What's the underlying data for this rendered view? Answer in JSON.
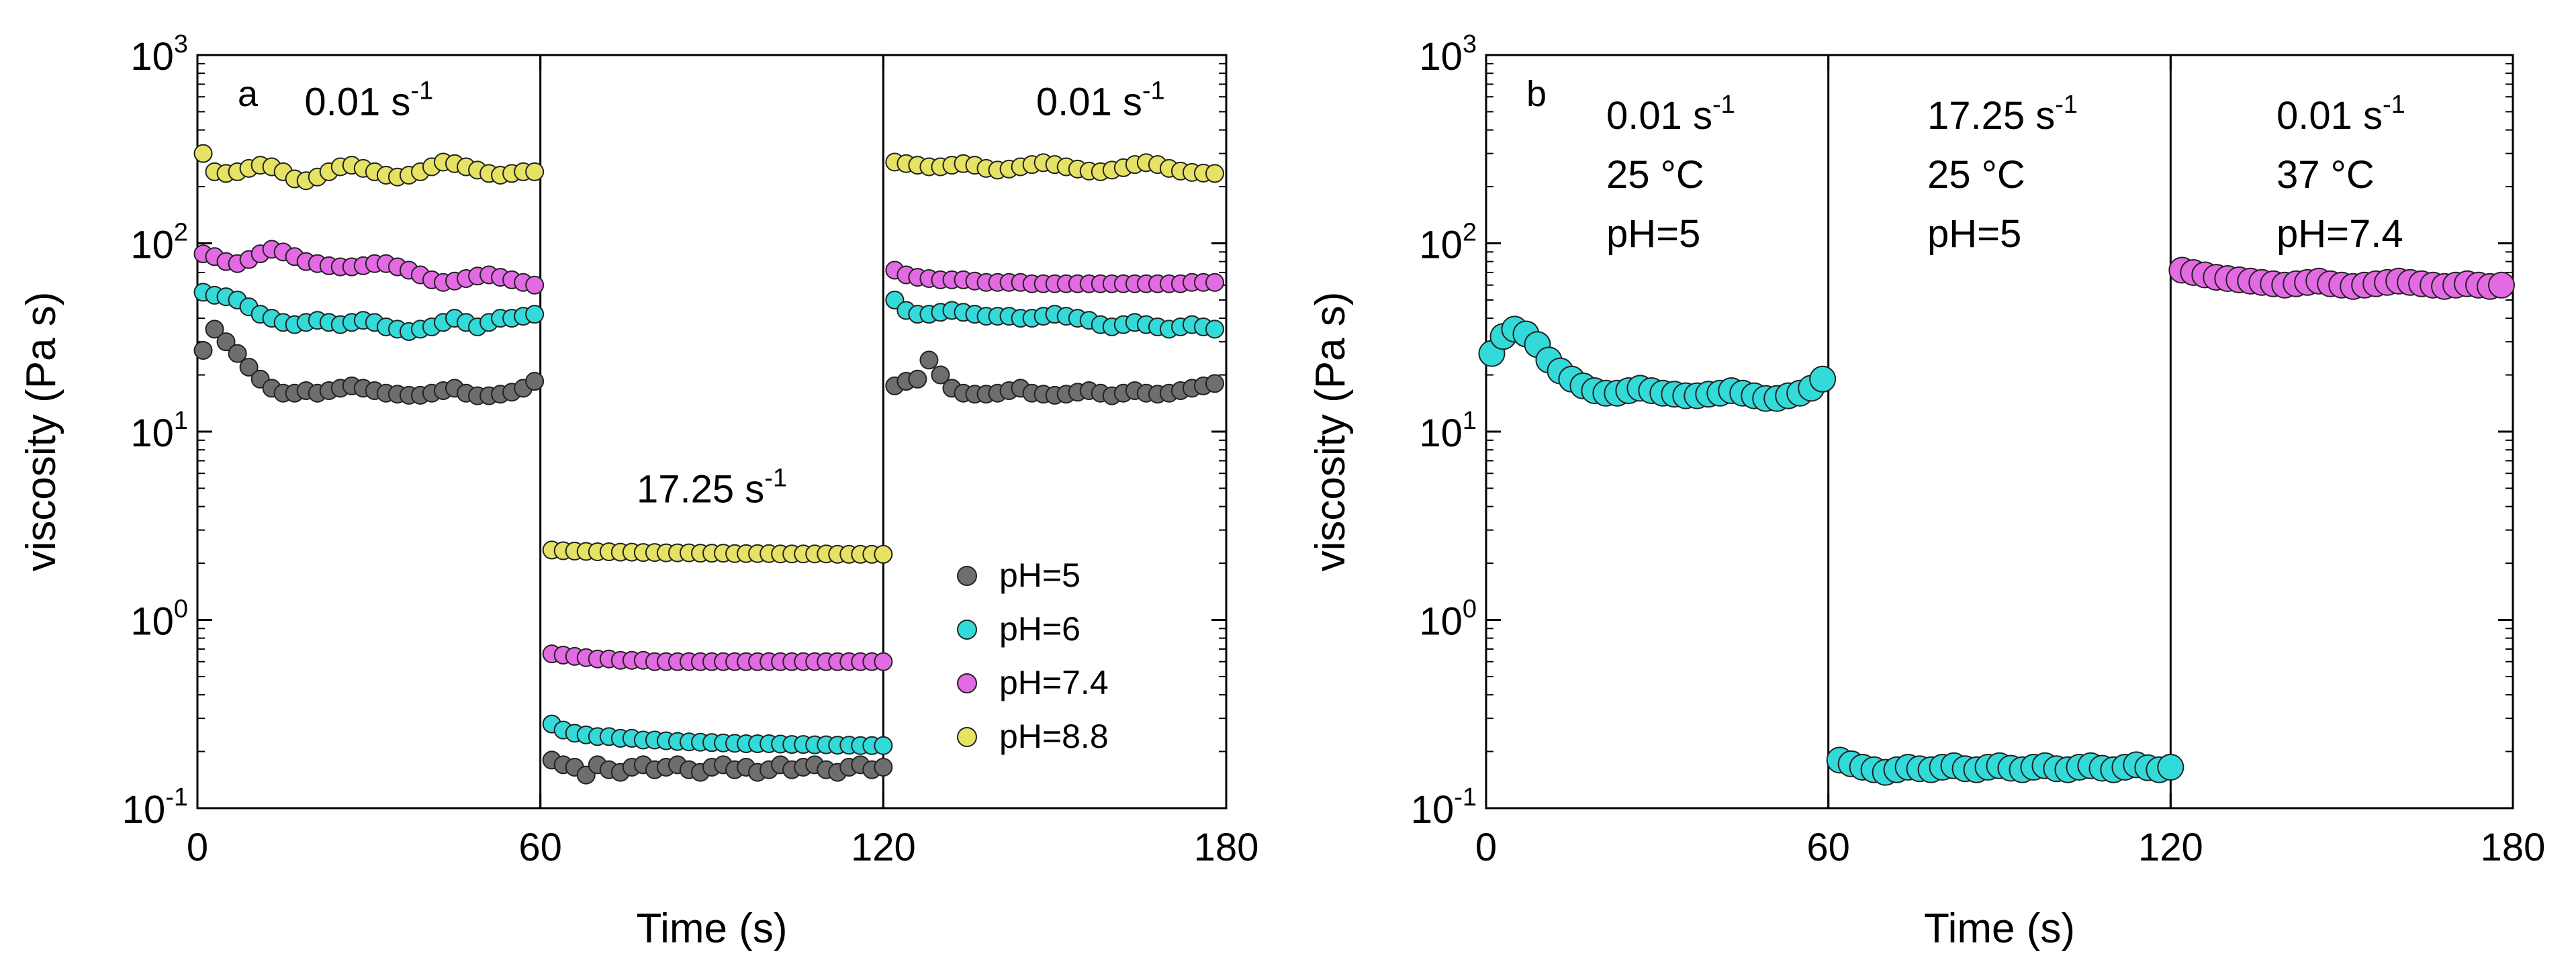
{
  "chart_data": [
    {
      "type": "scatter",
      "panel_label": "a",
      "xlabel": "Time (s)",
      "ylabel": "viscosity (Pa s)",
      "yscale": "log",
      "xlim": [
        0,
        180
      ],
      "ylim": [
        0.1,
        1000
      ],
      "x_ticks": [
        "0",
        "60",
        "120",
        "180"
      ],
      "y_ticks": [
        {
          "base": "10",
          "exp": "-1"
        },
        {
          "base": "10",
          "exp": "0"
        },
        {
          "base": "10",
          "exp": "1"
        },
        {
          "base": "10",
          "exp": "2"
        },
        {
          "base": "10",
          "exp": "3"
        }
      ],
      "vlines": [
        60,
        120
      ],
      "annotations": [
        {
          "text": "0.01 s",
          "sup": "-1",
          "x": 30,
          "y": 480
        },
        {
          "text": "17.25 s",
          "sup": "-1",
          "x": 90,
          "y": 4.2
        },
        {
          "text": "0.01 s",
          "sup": "-1",
          "x": 158,
          "y": 480
        }
      ],
      "legend": {
        "placement": "right-middle"
      },
      "series": [
        {
          "name": "pH=5",
          "color": "#6e6e6e",
          "x": [
            1,
            3,
            5,
            7,
            9,
            11,
            13,
            15,
            17,
            19,
            21,
            23,
            25,
            27,
            29,
            31,
            33,
            35,
            37,
            39,
            41,
            43,
            45,
            47,
            49,
            51,
            53,
            55,
            57,
            59,
            62,
            64,
            66,
            68,
            70,
            72,
            74,
            76,
            78,
            80,
            82,
            84,
            86,
            88,
            90,
            92,
            94,
            96,
            98,
            100,
            102,
            104,
            106,
            108,
            110,
            112,
            114,
            116,
            118,
            120,
            122,
            124,
            126,
            128,
            130,
            132,
            134,
            136,
            138,
            140,
            142,
            144,
            146,
            148,
            150,
            152,
            154,
            156,
            158,
            160,
            162,
            164,
            166,
            168,
            170,
            172,
            174,
            176,
            178
          ],
          "y": [
            27,
            35,
            30,
            26,
            22,
            19,
            17,
            16,
            16,
            16.5,
            16,
            16.5,
            17,
            17.5,
            17,
            16.5,
            16,
            15.8,
            15.6,
            15.6,
            16,
            16.5,
            17,
            16,
            15.5,
            15.5,
            15.8,
            16.2,
            17,
            18.5,
            0.18,
            0.17,
            0.165,
            0.15,
            0.17,
            0.16,
            0.155,
            0.165,
            0.17,
            0.16,
            0.165,
            0.17,
            0.16,
            0.155,
            0.165,
            0.17,
            0.16,
            0.165,
            0.155,
            0.16,
            0.17,
            0.16,
            0.165,
            0.17,
            0.16,
            0.155,
            0.165,
            0.17,
            0.16,
            0.165,
            17.5,
            18.5,
            19,
            24,
            20,
            17,
            16,
            15.8,
            15.8,
            16,
            16.5,
            17,
            16,
            15.8,
            15.6,
            15.8,
            16.2,
            16.5,
            16,
            15.5,
            16,
            16.5,
            16,
            15.8,
            16,
            16.5,
            17,
            17.5,
            18
          ]
        },
        {
          "name": "pH=6",
          "color": "#33dada",
          "x": [
            1,
            3,
            5,
            7,
            9,
            11,
            13,
            15,
            17,
            19,
            21,
            23,
            25,
            27,
            29,
            31,
            33,
            35,
            37,
            39,
            41,
            43,
            45,
            47,
            49,
            51,
            53,
            55,
            57,
            59,
            62,
            64,
            66,
            68,
            70,
            72,
            74,
            76,
            78,
            80,
            82,
            84,
            86,
            88,
            90,
            92,
            94,
            96,
            98,
            100,
            102,
            104,
            106,
            108,
            110,
            112,
            114,
            116,
            118,
            120,
            122,
            124,
            126,
            128,
            130,
            132,
            134,
            136,
            138,
            140,
            142,
            144,
            146,
            148,
            150,
            152,
            154,
            156,
            158,
            160,
            162,
            164,
            166,
            168,
            170,
            172,
            174,
            176,
            178
          ],
          "y": [
            55,
            53,
            52,
            50,
            46,
            42,
            40,
            38,
            37,
            38,
            39,
            38,
            37,
            38,
            39,
            38,
            36,
            35,
            34,
            35,
            36,
            38,
            40,
            38,
            36,
            38,
            40,
            40,
            41,
            42,
            0.28,
            0.26,
            0.25,
            0.245,
            0.24,
            0.24,
            0.235,
            0.235,
            0.23,
            0.23,
            0.228,
            0.226,
            0.225,
            0.224,
            0.223,
            0.222,
            0.221,
            0.22,
            0.22,
            0.22,
            0.219,
            0.218,
            0.218,
            0.217,
            0.217,
            0.216,
            0.216,
            0.215,
            0.215,
            0.215,
            50,
            44,
            42,
            42,
            43,
            44,
            43,
            42,
            41,
            41,
            41,
            40,
            40,
            41,
            42,
            41,
            40,
            39,
            37,
            36,
            37,
            38,
            37,
            36,
            35,
            36,
            37,
            36,
            35
          ]
        },
        {
          "name": "pH=7.4",
          "color": "#e46ae4",
          "x": [
            1,
            3,
            5,
            7,
            9,
            11,
            13,
            15,
            17,
            19,
            21,
            23,
            25,
            27,
            29,
            31,
            33,
            35,
            37,
            39,
            41,
            43,
            45,
            47,
            49,
            51,
            53,
            55,
            57,
            59,
            62,
            64,
            66,
            68,
            70,
            72,
            74,
            76,
            78,
            80,
            82,
            84,
            86,
            88,
            90,
            92,
            94,
            96,
            98,
            100,
            102,
            104,
            106,
            108,
            110,
            112,
            114,
            116,
            118,
            120,
            122,
            124,
            126,
            128,
            130,
            132,
            134,
            136,
            138,
            140,
            142,
            144,
            146,
            148,
            150,
            152,
            154,
            156,
            158,
            160,
            162,
            164,
            166,
            168,
            170,
            172,
            174,
            176,
            178
          ],
          "y": [
            88,
            85,
            80,
            78,
            82,
            88,
            93,
            90,
            85,
            80,
            78,
            76,
            75,
            75,
            76,
            78,
            78,
            75,
            72,
            68,
            64,
            62,
            63,
            65,
            67,
            68,
            66,
            64,
            62,
            60,
            0.66,
            0.65,
            0.64,
            0.63,
            0.62,
            0.62,
            0.61,
            0.61,
            0.61,
            0.6,
            0.6,
            0.6,
            0.6,
            0.6,
            0.6,
            0.6,
            0.6,
            0.6,
            0.6,
            0.6,
            0.6,
            0.6,
            0.6,
            0.6,
            0.6,
            0.6,
            0.6,
            0.6,
            0.6,
            0.6,
            72,
            68,
            66,
            65,
            64,
            64,
            64,
            63,
            62,
            62,
            62,
            62,
            61,
            61,
            61,
            61,
            61,
            61,
            61,
            61,
            61,
            61,
            61,
            61,
            61,
            61,
            62,
            62,
            62
          ]
        },
        {
          "name": "pH=8.8",
          "color": "#e6e263",
          "x": [
            1,
            3,
            5,
            7,
            9,
            11,
            13,
            15,
            17,
            19,
            21,
            23,
            25,
            27,
            29,
            31,
            33,
            35,
            37,
            39,
            41,
            43,
            45,
            47,
            49,
            51,
            53,
            55,
            57,
            59,
            62,
            64,
            66,
            68,
            70,
            72,
            74,
            76,
            78,
            80,
            82,
            84,
            86,
            88,
            90,
            92,
            94,
            96,
            98,
            100,
            102,
            104,
            106,
            108,
            110,
            112,
            114,
            116,
            118,
            120,
            122,
            124,
            126,
            128,
            130,
            132,
            134,
            136,
            138,
            140,
            142,
            144,
            146,
            148,
            150,
            152,
            154,
            156,
            158,
            160,
            162,
            164,
            166,
            168,
            170,
            172,
            174,
            176,
            178
          ],
          "y": [
            300,
            240,
            235,
            240,
            250,
            260,
            255,
            240,
            220,
            215,
            225,
            240,
            255,
            260,
            250,
            240,
            230,
            225,
            230,
            240,
            255,
            270,
            265,
            255,
            245,
            235,
            230,
            235,
            240,
            240,
            2.35,
            2.33,
            2.32,
            2.31,
            2.3,
            2.3,
            2.29,
            2.29,
            2.28,
            2.28,
            2.27,
            2.27,
            2.27,
            2.26,
            2.26,
            2.26,
            2.25,
            2.25,
            2.25,
            2.25,
            2.24,
            2.24,
            2.24,
            2.24,
            2.24,
            2.23,
            2.23,
            2.23,
            2.23,
            2.23,
            270,
            265,
            260,
            255,
            255,
            260,
            265,
            260,
            250,
            245,
            248,
            255,
            262,
            268,
            262,
            255,
            248,
            242,
            240,
            245,
            252,
            262,
            268,
            262,
            250,
            242,
            238,
            236,
            235
          ]
        }
      ]
    },
    {
      "type": "scatter",
      "panel_label": "b",
      "xlabel": "Time (s)",
      "ylabel": "viscosity (Pa s)",
      "yscale": "log",
      "xlim": [
        0,
        180
      ],
      "ylim": [
        0.1,
        1000
      ],
      "x_ticks": [
        "0",
        "60",
        "120",
        "180"
      ],
      "y_ticks": [
        {
          "base": "10",
          "exp": "-1"
        },
        {
          "base": "10",
          "exp": "0"
        },
        {
          "base": "10",
          "exp": "1"
        },
        {
          "base": "10",
          "exp": "2"
        },
        {
          "base": "10",
          "exp": "3"
        }
      ],
      "vlines": [
        60,
        120
      ],
      "condition_labels": [
        {
          "rate": "0.01 s",
          "sup": "-1",
          "temp": "25 °C",
          "ph": "pH=5"
        },
        {
          "rate": "17.25 s",
          "sup": "-1",
          "temp": "25 °C",
          "ph": "pH=5"
        },
        {
          "rate": "0.01 s",
          "sup": "-1",
          "temp": "37 °C",
          "ph": "pH=7.4"
        }
      ],
      "series": [
        {
          "name": "pH=5 (25 °C)",
          "color": "#33dada",
          "x": [
            1,
            3,
            5,
            7,
            9,
            11,
            13,
            15,
            17,
            19,
            21,
            23,
            25,
            27,
            29,
            31,
            33,
            35,
            37,
            39,
            41,
            43,
            45,
            47,
            49,
            51,
            53,
            55,
            57,
            59,
            62,
            64,
            66,
            68,
            70,
            72,
            74,
            76,
            78,
            80,
            82,
            84,
            86,
            88,
            90,
            92,
            94,
            96,
            98,
            100,
            102,
            104,
            106,
            108,
            110,
            112,
            114,
            116,
            118,
            120
          ],
          "y": [
            26,
            32,
            35,
            33,
            29,
            24,
            21,
            19,
            17.5,
            16.5,
            16,
            16,
            16.5,
            17,
            16.5,
            16,
            15.8,
            15.5,
            15.5,
            15.8,
            16,
            16.5,
            16,
            15.5,
            15,
            15,
            15.5,
            16,
            17,
            19,
            0.18,
            0.172,
            0.165,
            0.16,
            0.155,
            0.16,
            0.165,
            0.162,
            0.16,
            0.165,
            0.168,
            0.162,
            0.16,
            0.165,
            0.168,
            0.163,
            0.16,
            0.165,
            0.168,
            0.162,
            0.16,
            0.165,
            0.168,
            0.163,
            0.16,
            0.165,
            0.17,
            0.164,
            0.16,
            0.165
          ]
        },
        {
          "name": "pH=7.4 (37 °C)",
          "color": "#e46ae4",
          "x": [
            122,
            124,
            126,
            128,
            130,
            132,
            134,
            136,
            138,
            140,
            142,
            144,
            146,
            148,
            150,
            152,
            154,
            156,
            158,
            160,
            162,
            164,
            166,
            168,
            170,
            172,
            174,
            176,
            178
          ],
          "y": [
            72,
            70,
            68,
            66,
            65,
            64,
            63,
            62,
            61,
            60,
            61,
            62,
            63,
            61,
            60,
            59,
            60,
            61,
            62,
            63,
            62,
            61,
            60,
            59,
            60,
            61,
            60,
            59,
            60
          ]
        }
      ]
    }
  ]
}
